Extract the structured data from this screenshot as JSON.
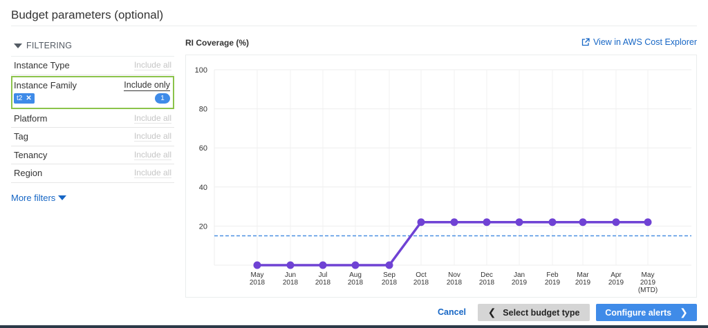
{
  "page": {
    "title": "Budget parameters (optional)"
  },
  "filtering": {
    "header": "FILTERING",
    "rows": [
      {
        "label": "Instance Type",
        "value": "Include all"
      },
      {
        "label": "Instance Family",
        "value": "Include only",
        "chip": "t2",
        "count": "1",
        "active": true
      },
      {
        "label": "Platform",
        "value": "Include all"
      },
      {
        "label": "Tag",
        "value": "Include all"
      },
      {
        "label": "Tenancy",
        "value": "Include all"
      },
      {
        "label": "Region",
        "value": "Include all"
      }
    ],
    "more_filters": "More filters"
  },
  "chart_header": {
    "title": "RI Coverage (%)",
    "link": "View in AWS Cost Explorer",
    "link_icon": "external-link-icon"
  },
  "chart_data": {
    "type": "line",
    "title": "RI Coverage (%)",
    "xlabel": "",
    "ylabel": "",
    "ylim": [
      0,
      100
    ],
    "yticks": [
      20,
      40,
      60,
      80,
      100
    ],
    "grid": true,
    "categories": [
      "May 2018",
      "Jun 2018",
      "Jul 2018",
      "Aug 2018",
      "Sep 2018",
      "Oct 2018",
      "Nov 2018",
      "Dec 2018",
      "Jan 2019",
      "Feb 2019",
      "Mar 2019",
      "Apr 2019",
      "May 2019 (MTD)"
    ],
    "series": [
      {
        "name": "RI Coverage",
        "color": "#6f42d4",
        "values": [
          0,
          0,
          0,
          0,
          0,
          22,
          22,
          22,
          22,
          22,
          22,
          22,
          22
        ]
      }
    ],
    "threshold": {
      "value": 15,
      "style": "dashed",
      "color": "#4a90e2"
    }
  },
  "footer": {
    "cancel": "Cancel",
    "prev": "Select budget type",
    "next": "Configure alerts"
  },
  "colors": {
    "accent": "#3f8be8",
    "link": "#1666c5",
    "line": "#6f42d4",
    "active_border": "#8bc34a"
  }
}
